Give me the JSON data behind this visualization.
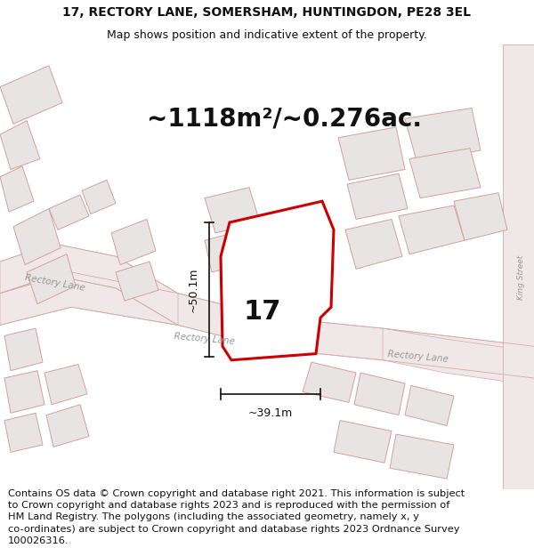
{
  "title_line1": "17, RECTORY LANE, SOMERSHAM, HUNTINGDON, PE28 3EL",
  "title_line2": "Map shows position and indicative extent of the property.",
  "area_label": "~1118m²/~0.276ac.",
  "plot_number": "17",
  "dim_vertical": "~50.1m",
  "dim_horizontal": "~39.1m",
  "footer_text": "Contains OS data © Crown copyright and database right 2021. This information is subject\nto Crown copyright and database rights 2023 and is reproduced with the permission of\nHM Land Registry. The polygons (including the associated geometry, namely x, y\nco-ordinates) are subject to Crown copyright and database rights 2023 Ordnance Survey\n100026316.",
  "bg_color": "#ffffff",
  "map_bg_color": "#ffffff",
  "building_fill": "#e8e4e4",
  "building_edge": "#d4a0a0",
  "road_fill": "#f0e8e8",
  "highlight_fill": "#ffffff",
  "highlight_edge": "#cc0000",
  "road_line_color": "#d4aaaa",
  "dim_line_color": "#111111",
  "label_color": "#999999",
  "text_color": "#111111",
  "title_fontsize": 10,
  "subtitle_fontsize": 9,
  "area_fontsize": 20,
  "plot_num_fontsize": 22,
  "dim_fontsize": 9,
  "footer_fontsize": 8.2
}
